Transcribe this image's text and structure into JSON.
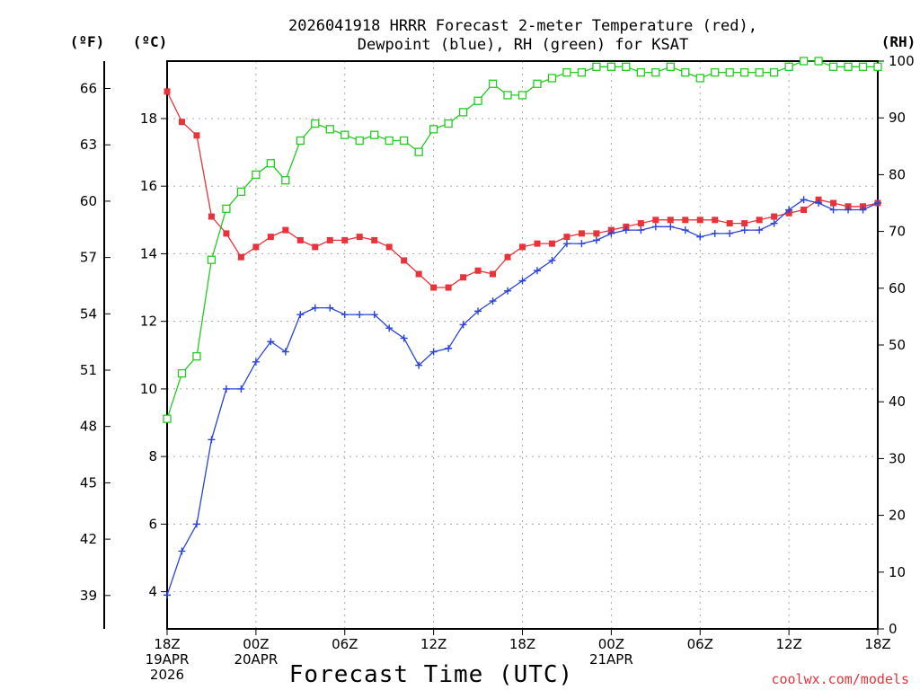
{
  "chart_data": {
    "type": "line",
    "title_lines": [
      "2026041918 HRRR Forecast 2-meter Temperature (red),",
      "Dewpoint (blue), RH (green) for KSAT"
    ],
    "xlabel": "Forecast Time (UTC)",
    "credit": "coolwx.com/models",
    "unit_labels": {
      "fahrenheit": "(ºF)",
      "celsius": "(ºC)",
      "rh": "(RH)"
    },
    "x_range_hours": [
      0,
      48
    ],
    "x_ticks": [
      {
        "hour": 0,
        "lines": [
          "18Z",
          "19APR",
          "2026"
        ]
      },
      {
        "hour": 6,
        "lines": [
          "00Z",
          "20APR"
        ]
      },
      {
        "hour": 12,
        "lines": [
          "06Z"
        ]
      },
      {
        "hour": 18,
        "lines": [
          "12Z"
        ]
      },
      {
        "hour": 24,
        "lines": [
          "18Z"
        ]
      },
      {
        "hour": 30,
        "lines": [
          "00Z",
          "21APR"
        ]
      },
      {
        "hour": 36,
        "lines": [
          "06Z"
        ]
      },
      {
        "hour": 42,
        "lines": [
          "12Z"
        ]
      },
      {
        "hour": 48,
        "lines": [
          "18Z"
        ]
      }
    ],
    "celsius_axis": {
      "range": [
        2.9,
        19.7
      ],
      "ticks": [
        "4",
        "6",
        "8",
        "10",
        "12",
        "14",
        "16",
        "18"
      ]
    },
    "fahrenheit_axis": {
      "ticks": [
        "39",
        "42",
        "45",
        "48",
        "51",
        "54",
        "57",
        "60",
        "63",
        "66"
      ]
    },
    "rh_axis": {
      "range": [
        0,
        100
      ],
      "ticks": [
        "0",
        "10",
        "20",
        "30",
        "40",
        "50",
        "60",
        "70",
        "80",
        "90",
        "100"
      ]
    },
    "series": [
      {
        "key": "temperature",
        "axis": "celsius",
        "color": "#e8333a",
        "marker": "filled-square",
        "values": [
          18.8,
          17.9,
          17.5,
          15.1,
          14.6,
          13.9,
          14.2,
          14.5,
          14.7,
          14.4,
          14.2,
          14.4,
          14.4,
          14.5,
          14.4,
          14.2,
          13.8,
          13.4,
          13.0,
          13.0,
          13.3,
          13.5,
          13.4,
          13.9,
          14.2,
          14.3,
          14.3,
          14.5,
          14.6,
          14.6,
          14.7,
          14.8,
          14.9,
          15.0,
          15.0,
          15.0,
          15.0,
          15.0,
          14.9,
          14.9,
          15.0,
          15.1,
          15.2,
          15.3,
          15.6,
          15.5,
          15.4,
          15.4,
          15.5
        ]
      },
      {
        "key": "dewpoint",
        "axis": "celsius",
        "color": "#2a44d8",
        "marker": "plus",
        "values": [
          3.9,
          5.2,
          6.0,
          8.5,
          10.0,
          10.0,
          10.8,
          11.4,
          11.1,
          12.2,
          12.4,
          12.4,
          12.2,
          12.2,
          12.2,
          11.8,
          11.5,
          10.7,
          11.1,
          11.2,
          11.9,
          12.3,
          12.6,
          12.9,
          13.2,
          13.5,
          13.8,
          14.3,
          14.3,
          14.4,
          14.6,
          14.7,
          14.7,
          14.8,
          14.8,
          14.7,
          14.5,
          14.6,
          14.6,
          14.7,
          14.7,
          14.9,
          15.3,
          15.6,
          15.5,
          15.3,
          15.3,
          15.3,
          15.5
        ]
      },
      {
        "key": "rh",
        "axis": "rh",
        "color": "#22cc22",
        "marker": "open-square",
        "values": [
          37,
          45,
          48,
          65,
          74,
          77,
          80,
          82,
          79,
          86,
          89,
          88,
          87,
          86,
          87,
          86,
          86,
          84,
          88,
          89,
          91,
          93,
          96,
          94,
          94,
          96,
          97,
          98,
          98,
          99,
          99,
          99,
          98,
          98,
          99,
          98,
          97,
          98,
          98,
          98,
          98,
          98,
          99,
          100,
          100,
          99,
          99,
          99,
          99
        ]
      }
    ]
  }
}
